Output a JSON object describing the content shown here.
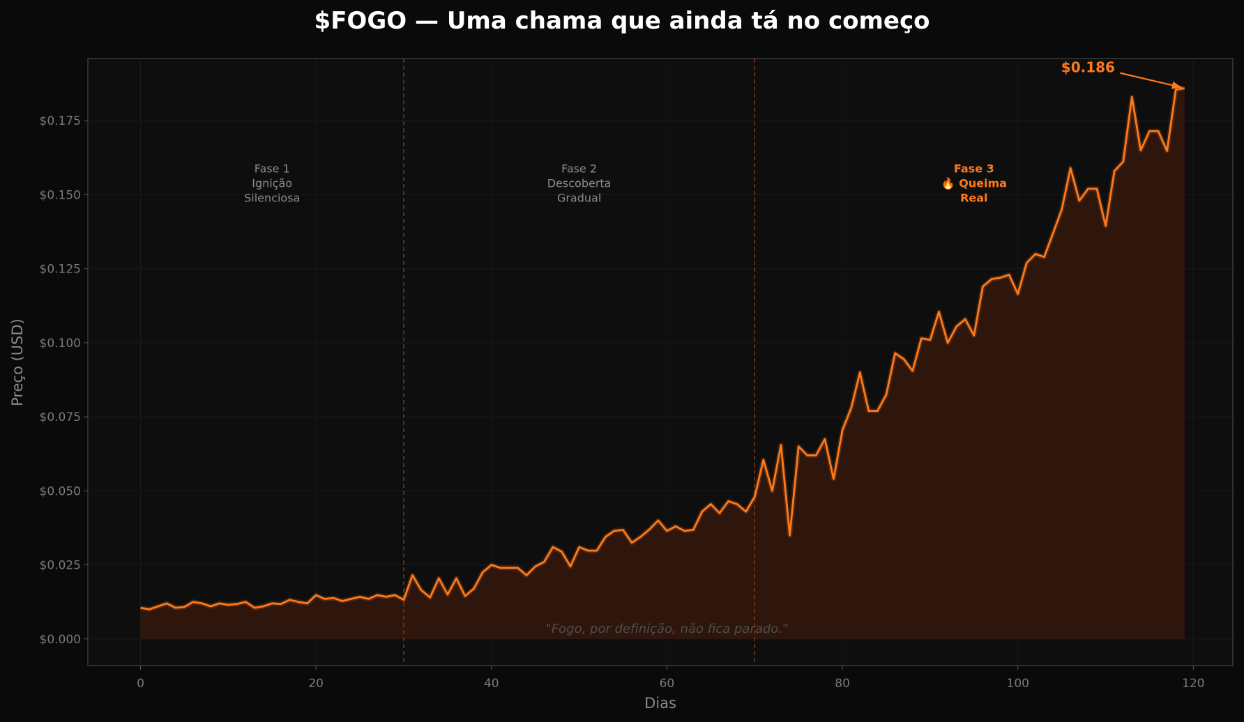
{
  "chart_data": {
    "type": "line",
    "title": "$FOGO — Uma chama que ainda tá no começo",
    "xlabel": "Dias",
    "ylabel": "Preço (USD)",
    "xlim": [
      -6,
      124.5
    ],
    "ylim": [
      -0.009,
      0.196
    ],
    "xticks": [
      0,
      20,
      40,
      60,
      80,
      100,
      120
    ],
    "xtick_labels": [
      "0",
      "20",
      "40",
      "60",
      "80",
      "100",
      "120"
    ],
    "yticks": [
      0,
      0.025,
      0.05,
      0.075,
      0.1,
      0.125,
      0.15,
      0.175
    ],
    "ytick_labels": [
      "$0.000",
      "$0.025",
      "$0.050",
      "$0.075",
      "$0.100",
      "$0.125",
      "$0.150",
      "$0.175"
    ],
    "grid": true,
    "fill_under_line": true,
    "colors": {
      "line": "#ff7a1a",
      "fill": "#2e160c",
      "plot_background": "#0e0e0e",
      "page_background": "#0a0a0a",
      "grid": "#1a1a1a",
      "frame": "#3a3a3a",
      "phase_divider": "#7a3a1a"
    },
    "series": [
      {
        "x": [
          0,
          1,
          2,
          3,
          4,
          5,
          6,
          7,
          8,
          9,
          10,
          11,
          12,
          13,
          14,
          15,
          16,
          17,
          18,
          19,
          20,
          21,
          22,
          23,
          24,
          25,
          26,
          27,
          28,
          29,
          30,
          31,
          32,
          33,
          34,
          35,
          36,
          37,
          38,
          39,
          40,
          41,
          42,
          43,
          44,
          45,
          46,
          47,
          48,
          49,
          50,
          51,
          52,
          53,
          54,
          55,
          56,
          57,
          58,
          59,
          60,
          61,
          62,
          63,
          64,
          65,
          66,
          67,
          68,
          69,
          70,
          71,
          72,
          73,
          74,
          75,
          76,
          77,
          78,
          79,
          80,
          81,
          82,
          83,
          84,
          85,
          86,
          87,
          88,
          89,
          90,
          91,
          92,
          93,
          94,
          95,
          96,
          97,
          98,
          99,
          100,
          101,
          102,
          103,
          104,
          105,
          106,
          107,
          108,
          109,
          110,
          111,
          112,
          113,
          114,
          115,
          116,
          117,
          118,
          119
        ],
        "values": [
          0.0105,
          0.01,
          0.011,
          0.012,
          0.0105,
          0.0108,
          0.0125,
          0.012,
          0.011,
          0.012,
          0.0115,
          0.0118,
          0.0125,
          0.0105,
          0.011,
          0.012,
          0.0118,
          0.0132,
          0.0125,
          0.012,
          0.0148,
          0.0135,
          0.0138,
          0.0128,
          0.0135,
          0.0142,
          0.0135,
          0.0148,
          0.0142,
          0.0148,
          0.0132,
          0.0215,
          0.0165,
          0.014,
          0.0205,
          0.015,
          0.0205,
          0.0145,
          0.017,
          0.0225,
          0.025,
          0.024,
          0.024,
          0.024,
          0.0215,
          0.0245,
          0.026,
          0.031,
          0.0295,
          0.0245,
          0.031,
          0.0298,
          0.0298,
          0.0345,
          0.0365,
          0.0368,
          0.0325,
          0.0345,
          0.037,
          0.04,
          0.0365,
          0.038,
          0.0365,
          0.0368,
          0.043,
          0.0455,
          0.0425,
          0.0465,
          0.0455,
          0.043,
          0.048,
          0.0605,
          0.05,
          0.0655,
          0.035,
          0.065,
          0.062,
          0.062,
          0.0675,
          0.054,
          0.0705,
          0.078,
          0.09,
          0.077,
          0.077,
          0.0825,
          0.0965,
          0.0945,
          0.0905,
          0.1015,
          0.101,
          0.1105,
          0.1,
          0.1055,
          0.108,
          0.1025,
          0.119,
          0.1215,
          0.122,
          0.123,
          0.1165,
          0.127,
          0.13,
          0.129,
          0.137,
          0.145,
          0.159,
          0.148,
          0.152,
          0.152,
          0.1395,
          0.158,
          0.1612,
          0.183,
          0.165,
          0.1715,
          0.1715,
          0.1648,
          0.1855,
          0.186
        ]
      }
    ],
    "phase_dividers_x": [
      30,
      70
    ],
    "phases": [
      {
        "lines": [
          "Fase 1",
          "Ignição",
          "Silenciosa"
        ],
        "x": 15,
        "y": 0.1575,
        "highlight": false
      },
      {
        "lines": [
          "Fase 2",
          "Descoberta",
          "Gradual"
        ],
        "x": 50,
        "y": 0.1575,
        "highlight": false
      },
      {
        "lines": [
          "Fase 3",
          "🔥 Queima",
          "Real"
        ],
        "x": 95,
        "y": 0.1575,
        "highlight": true
      }
    ],
    "annotations": [
      {
        "id": "peak",
        "text": "$0.186",
        "point": [
          119,
          0.186
        ],
        "text_at": [
          108,
          0.193
        ]
      },
      {
        "id": "quote",
        "text": "\"Fogo, por definição, não fica parado.\"",
        "at": [
          60,
          0.0035
        ]
      }
    ]
  }
}
